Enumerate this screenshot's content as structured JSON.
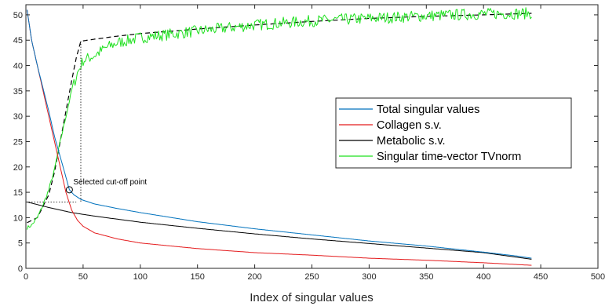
{
  "chart_data": {
    "type": "line",
    "title": "",
    "xlabel": "Index of singular values",
    "ylabel": "",
    "xlim": [
      0,
      500
    ],
    "ylim": [
      0,
      52
    ],
    "xticks": [
      0,
      50,
      100,
      150,
      200,
      250,
      300,
      350,
      400,
      450,
      500
    ],
    "yticks": [
      0,
      5,
      10,
      15,
      20,
      25,
      30,
      35,
      40,
      45,
      50
    ],
    "grid": false,
    "legend_position": "right",
    "series": [
      {
        "name": "Total singular values",
        "color": "#0072BD",
        "style": "solid",
        "x": [
          1,
          5,
          10,
          15,
          20,
          25,
          30,
          35,
          38,
          42,
          48,
          60,
          80,
          100,
          150,
          200,
          250,
          300,
          350,
          400,
          430,
          442
        ],
        "y": [
          51,
          45,
          40,
          35.5,
          31,
          26,
          22,
          18,
          15.5,
          14.5,
          13.6,
          12.7,
          11.8,
          11,
          9.2,
          7.8,
          6.6,
          5.4,
          4.4,
          3.2,
          2.4,
          2.0
        ]
      },
      {
        "name": "Collagen s.v.",
        "color": "#E41A1C",
        "style": "solid",
        "x": [
          1,
          5,
          10,
          15,
          20,
          25,
          30,
          35,
          40,
          45,
          50,
          60,
          80,
          100,
          150,
          200,
          250,
          300,
          350,
          400,
          442
        ],
        "y": [
          51,
          45,
          40,
          35,
          30,
          25,
          20,
          15,
          11.5,
          9.5,
          8.3,
          7,
          5.8,
          5,
          3.9,
          3.1,
          2.6,
          2.0,
          1.6,
          1.1,
          0.6
        ]
      },
      {
        "name": "Metabolic s.v.",
        "color": "#000000",
        "style": "solid",
        "x": [
          1,
          20,
          40,
          60,
          80,
          100,
          150,
          200,
          250,
          300,
          350,
          400,
          442
        ],
        "y": [
          13.1,
          12.0,
          11.0,
          10.3,
          9.7,
          9.1,
          7.9,
          6.8,
          5.8,
          4.9,
          4.0,
          3.1,
          1.8
        ]
      },
      {
        "name": "Singular time-vector TVnorm",
        "color": "#1EE01E",
        "style": "noisy",
        "x": [
          1,
          5,
          10,
          15,
          20,
          25,
          30,
          35,
          40,
          45,
          48,
          50,
          60,
          70,
          80,
          100,
          120,
          150,
          200,
          250,
          300,
          350,
          400,
          442
        ],
        "y": [
          8,
          8.5,
          10,
          12.5,
          15.5,
          19.5,
          25,
          30,
          35,
          38.5,
          40,
          41,
          42,
          43.5,
          44.5,
          45.5,
          46,
          46.8,
          48,
          48.8,
          49.3,
          49.8,
          50.2,
          50.3
        ]
      },
      {
        "name": "",
        "color": "#000000",
        "style": "dashed",
        "x": [
          1,
          10,
          20,
          25,
          30,
          35,
          40,
          44,
          48,
          60,
          80,
          100,
          150,
          200,
          250,
          300,
          350,
          400,
          442
        ],
        "y": [
          9,
          10,
          14.5,
          19,
          25,
          31,
          37,
          41.5,
          44.8,
          45.2,
          45.8,
          46.3,
          47.2,
          48,
          48.7,
          49.3,
          49.7,
          50,
          50.3
        ]
      }
    ],
    "annotation": {
      "text": "Selected cut-off point",
      "x": 38,
      "y": 15.5,
      "guide_y": 13.1,
      "guide_x": 48
    }
  }
}
